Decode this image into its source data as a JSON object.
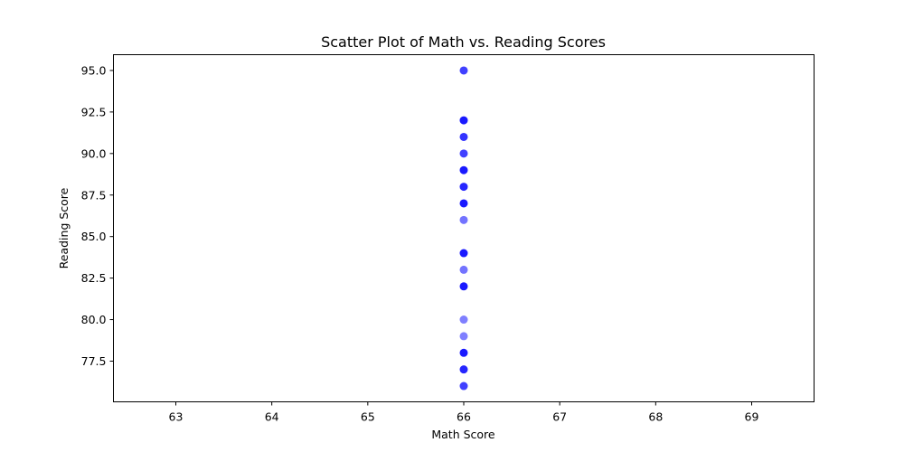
{
  "chart_data": {
    "type": "scatter",
    "title": "Scatter Plot of Math vs. Reading Scores",
    "xlabel": "Math Score",
    "ylabel": "Reading Score",
    "xlim": [
      62.35,
      69.65
    ],
    "ylim": [
      75.05,
      95.95
    ],
    "xticks": [
      63,
      64,
      65,
      66,
      67,
      68,
      69
    ],
    "xtick_labels": [
      "63",
      "64",
      "65",
      "66",
      "67",
      "68",
      "69"
    ],
    "yticks": [
      77.5,
      80.0,
      82.5,
      85.0,
      87.5,
      90.0,
      92.5,
      95.0
    ],
    "ytick_labels": [
      "77.5",
      "80.0",
      "82.5",
      "85.0",
      "87.5",
      "90.0",
      "92.5",
      "95.0"
    ],
    "grid": false,
    "marker_color": "#0000ff",
    "series": [
      {
        "x": [
          66,
          66,
          66,
          66,
          66,
          66,
          66,
          66,
          66,
          66,
          66,
          66,
          66,
          66,
          66,
          66
        ],
        "y": [
          95,
          92,
          91,
          90,
          89,
          88,
          87,
          86,
          84,
          83,
          82,
          80,
          79,
          78,
          77,
          76
        ],
        "alpha": [
          0.75,
          0.9,
          0.8,
          0.75,
          0.9,
          0.85,
          0.9,
          0.55,
          0.9,
          0.55,
          0.9,
          0.5,
          0.5,
          0.9,
          0.85,
          0.75
        ]
      }
    ]
  }
}
